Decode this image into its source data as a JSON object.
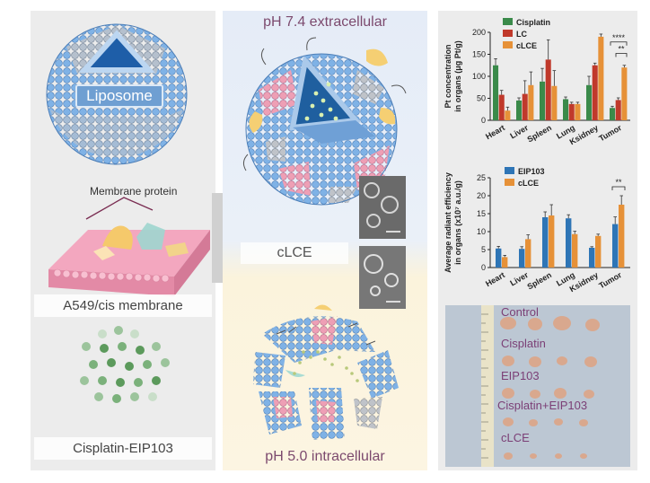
{
  "left_panel": {
    "liposome_label": "Liposome",
    "membrane_protein_label": "Membrane protein",
    "membrane_label": "A549/cis membrane",
    "drug_label": "Cisplatin-EIP103"
  },
  "middle_panel": {
    "top_label": "pH 7.4 extracellular",
    "center_label": "cLCE",
    "bottom_label": "pH 5.0 intracellular"
  },
  "colors": {
    "sphere_blue": "#7fb2e6",
    "sphere_gray": "#b9bdc4",
    "sphere_pink": "#ee9fb5",
    "cisplatin": "#3a8a4a",
    "lc": "#c0392b",
    "clce": "#e69138",
    "eip103": "#2e75b6"
  },
  "chart_data": [
    {
      "type": "bar",
      "ylabel": "Pt concentration in organs (μg Pt/g)",
      "ylim": [
        0,
        200
      ],
      "yticks": [
        "0",
        "50",
        "100",
        "150",
        "200"
      ],
      "categories": [
        "Heart",
        "Liver",
        "Spleen",
        "Lung",
        "Ksidney",
        "Tumor"
      ],
      "series": [
        {
          "name": "Cisplatin",
          "values": [
            125,
            45,
            88,
            48,
            80,
            28
          ],
          "errors": [
            15,
            6,
            30,
            5,
            20,
            4
          ]
        },
        {
          "name": "LC",
          "values": [
            58,
            60,
            138,
            37,
            125,
            46
          ],
          "errors": [
            10,
            30,
            45,
            4,
            5,
            5
          ]
        },
        {
          "name": "cLCE",
          "values": [
            22,
            80,
            78,
            37,
            190,
            120
          ],
          "errors": [
            8,
            30,
            35,
            4,
            6,
            5
          ]
        }
      ],
      "annotations": [
        "****",
        "**"
      ]
    },
    {
      "type": "bar",
      "ylabel": "Average radiant efficiency in organs (x10⁷ a.u./g)",
      "ylim": [
        0,
        25
      ],
      "yticks": [
        "0",
        "5",
        "10",
        "15",
        "20",
        "25"
      ],
      "categories": [
        "Heart",
        "Liver",
        "Spleen",
        "Lung",
        "Ksidney",
        "Tumor"
      ],
      "series": [
        {
          "name": "EIP103",
          "values": [
            5.3,
            5.2,
            14.0,
            13.7,
            5.5,
            12.1
          ],
          "errors": [
            0.6,
            0.6,
            1.5,
            1.0,
            0.3,
            2.0
          ]
        },
        {
          "name": "cLCE",
          "values": [
            2.9,
            7.9,
            14.5,
            9.3,
            8.8,
            17.5
          ],
          "errors": [
            0.5,
            1.2,
            3.0,
            0.8,
            0.5,
            2.5
          ]
        }
      ],
      "annotations": [
        "**"
      ]
    }
  ],
  "tumor_photo": {
    "labels": [
      "Control",
      "Cisplatin",
      "EIP103",
      "Cisplatin+EIP103",
      "cLCE"
    ]
  }
}
